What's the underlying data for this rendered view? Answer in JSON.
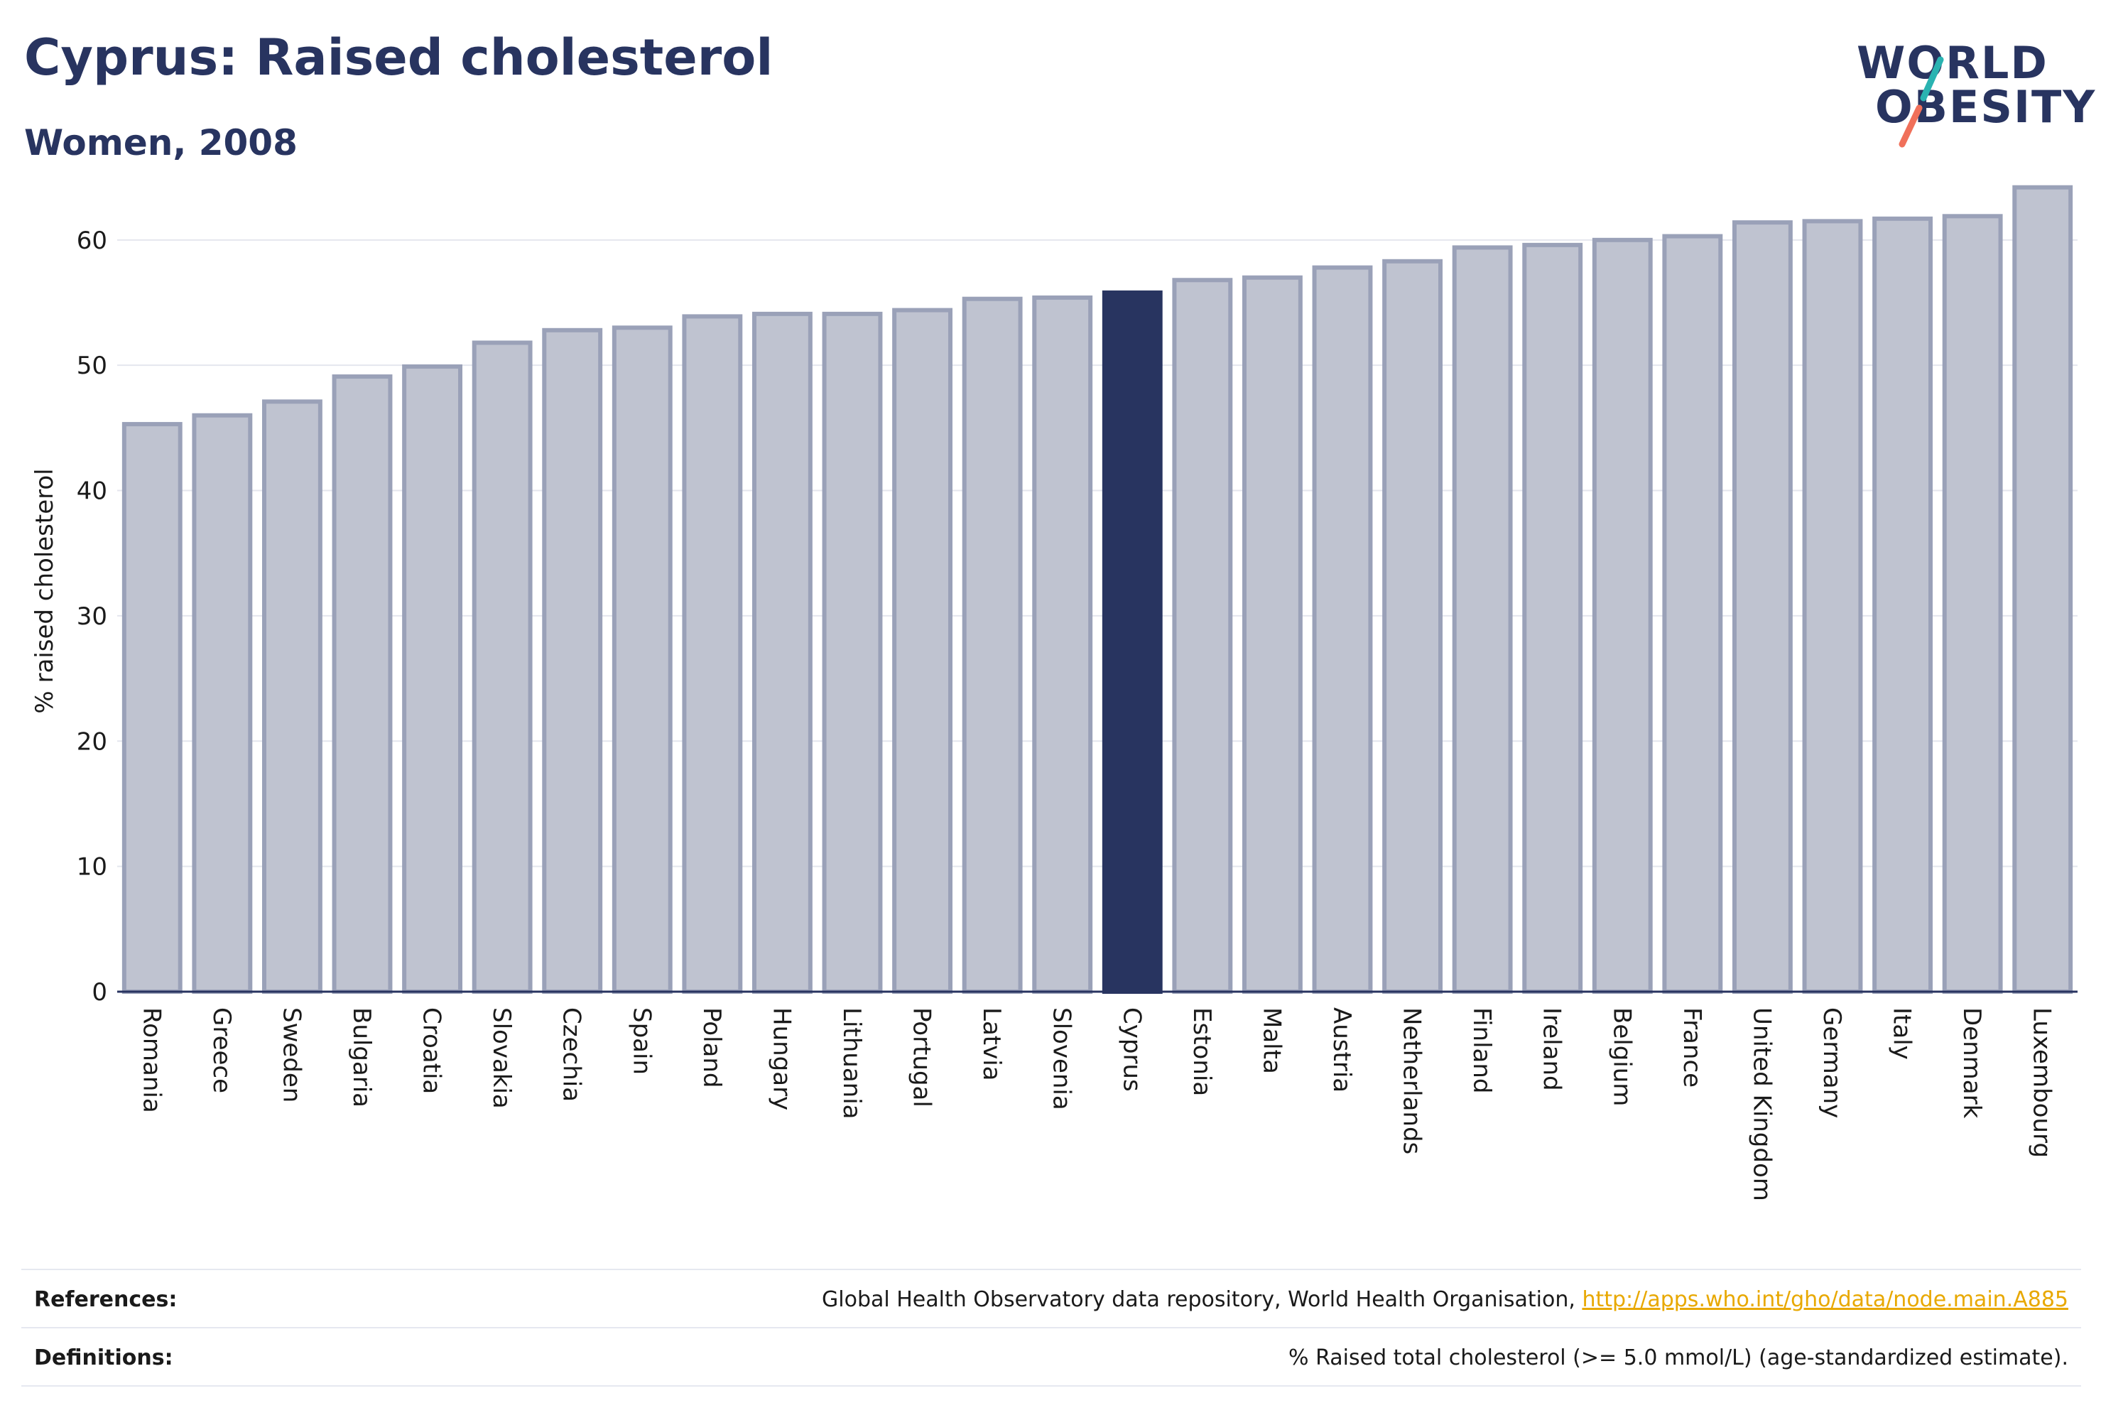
{
  "header": {
    "title": "Cyprus: Raised cholesterol",
    "subtitle": "Women, 2008"
  },
  "logo": {
    "line1": "WORLD",
    "line2": "OBESITY"
  },
  "colors": {
    "highlight": "#283460",
    "bar": "#bfc3d0",
    "bar_border": "#9aa1b8",
    "logo_teal": "#2ab3b1",
    "logo_coral": "#f0705a",
    "link": "#e8a800"
  },
  "chart_data": {
    "type": "bar",
    "ylabel": "% raised cholesterol",
    "xlabel": "",
    "ylim": [
      0,
      66
    ],
    "yticks": [
      0,
      10,
      20,
      30,
      40,
      50,
      60
    ],
    "grid": true,
    "highlight": "Cyprus",
    "categories": [
      "Romania",
      "Greece",
      "Sweden",
      "Bulgaria",
      "Croatia",
      "Slovakia",
      "Czechia",
      "Spain",
      "Poland",
      "Hungary",
      "Lithuania",
      "Portugal",
      "Latvia",
      "Slovenia",
      "Cyprus",
      "Estonia",
      "Malta",
      "Austria",
      "Netherlands",
      "Finland",
      "Ireland",
      "Belgium",
      "France",
      "United Kingdom",
      "Germany",
      "Italy",
      "Denmark",
      "Luxembourg"
    ],
    "values": [
      45.3,
      46.0,
      47.1,
      49.1,
      49.9,
      51.8,
      52.8,
      53.0,
      53.9,
      54.1,
      54.1,
      54.4,
      55.3,
      55.4,
      55.8,
      56.8,
      57.0,
      57.8,
      58.3,
      59.4,
      59.6,
      60.0,
      60.3,
      61.4,
      61.5,
      61.7,
      61.9,
      64.2
    ]
  },
  "footer": {
    "references_label": "References:",
    "references_text": "Global Health Observatory data repository, World Health Organisation, ",
    "references_link": "http://apps.who.int/gho/data/node.main.A885",
    "definitions_label": "Definitions:",
    "definitions_text": "% Raised total cholesterol (>= 5.0 mmol/L) (age-standardized estimate)."
  }
}
